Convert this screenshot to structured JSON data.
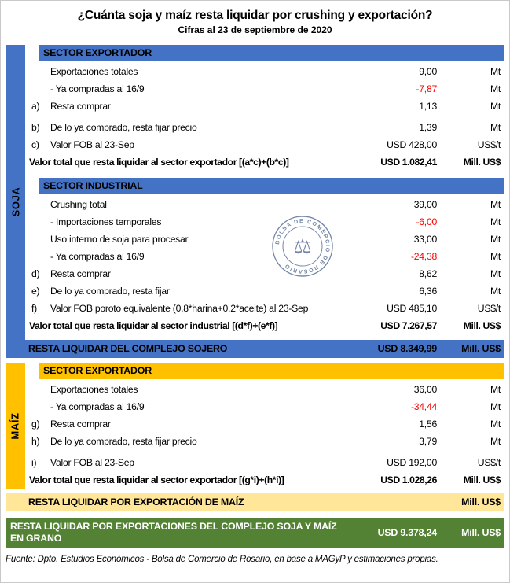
{
  "title": "¿Cuánta soja y maíz resta liquidar por crushing y exportación?",
  "subtitle": "Cifras al 23 de septiembre de 2020",
  "watermark_text": "BOLSA DE COMERCIO DE ROSARIO",
  "colors": {
    "soja_accent": "#4472C4",
    "maiz_accent": "#FFC000",
    "maiz_total_bg": "#FFE699",
    "grand_total_bg": "#548235",
    "negative": "#FF0000"
  },
  "soja": {
    "side_label": "SOJA",
    "sections": [
      {
        "header": "SECTOR EXPORTADOR",
        "rows": [
          {
            "letter": "",
            "label": "Exportaciones totales",
            "value": "9,00",
            "unit": "Mt"
          },
          {
            "letter": "",
            "label": "- Ya compradas al 16/9",
            "value": "-7,87",
            "unit": "Mt",
            "negative": true
          },
          {
            "letter": "a)",
            "label": "Resta comprar",
            "value": "1,13",
            "unit": "Mt"
          },
          {
            "letter": "b)",
            "label": "De lo ya comprado, resta fijar precio",
            "value": "1,39",
            "unit": "Mt",
            "gap": true
          },
          {
            "letter": "c)",
            "label": "Valor FOB al 23-Sep",
            "value": "USD 428,00",
            "unit": "US$/t"
          },
          {
            "label": "Valor total que resta liquidar al sector exportador [(a*c)+(b*c)]",
            "value": "USD 1.082,41",
            "unit": "Mill. US$",
            "bold": true
          }
        ]
      },
      {
        "header": "SECTOR INDUSTRIAL",
        "rows": [
          {
            "letter": "",
            "label": "Crushing total",
            "value": "39,00",
            "unit": "Mt"
          },
          {
            "letter": "",
            "label": "- Importaciones temporales",
            "value": "-6,00",
            "unit": "Mt",
            "negative": true
          },
          {
            "letter": "",
            "label": "Uso interno de soja para procesar",
            "value": "33,00",
            "unit": "Mt"
          },
          {
            "letter": "",
            "label": "- Ya compradas al 16/9",
            "value": "-24,38",
            "unit": "Mt",
            "negative": true
          },
          {
            "letter": "d)",
            "label": "Resta comprar",
            "value": "8,62",
            "unit": "Mt"
          },
          {
            "letter": "e)",
            "label": "De lo ya comprado, resta fijar",
            "value": "6,36",
            "unit": "Mt"
          },
          {
            "letter": "f)",
            "label": "Valor FOB poroto equivalente (0,8*harina+0,2*aceite) al 23-Sep",
            "value": "USD 485,10",
            "unit": "US$/t"
          },
          {
            "label": "Valor total que resta liquidar al sector industrial [(d*f)+(e*f)]",
            "value": "USD 7.267,57",
            "unit": "Mill. US$",
            "bold": true
          }
        ]
      }
    ],
    "total": {
      "label": "RESTA LIQUIDAR DEL COMPLEJO SOJERO",
      "value": "USD 8.349,99",
      "unit": "Mill. US$"
    }
  },
  "maiz": {
    "side_label": "MAÍZ",
    "sections": [
      {
        "header": "SECTOR EXPORTADOR",
        "rows": [
          {
            "letter": "",
            "label": "Exportaciones totales",
            "value": "36,00",
            "unit": "Mt"
          },
          {
            "letter": "",
            "label": "- Ya compradas al 16/9",
            "value": "-34,44",
            "unit": "Mt",
            "negative": true
          },
          {
            "letter": "g)",
            "label": "Resta comprar",
            "value": "1,56",
            "unit": "Mt"
          },
          {
            "letter": "h)",
            "label": "De lo ya comprado, resta fijar precio",
            "value": "3,79",
            "unit": "Mt"
          },
          {
            "letter": "i)",
            "label": "Valor FOB al 23-Sep",
            "value": "USD 192,00",
            "unit": "US$/t",
            "gap": true
          },
          {
            "label": "Valor total que resta liquidar al sector exportador [(g*i)+(h*i)]",
            "value": "USD 1.028,26",
            "unit": "Mill. US$",
            "bold": true
          }
        ]
      }
    ],
    "total": {
      "label": "RESTA LIQUIDAR POR EXPORTACIÓN DE MAÍZ",
      "value": "",
      "unit": "Mill. US$"
    }
  },
  "grand_total": {
    "label": "RESTA LIQUIDAR POR EXPORTACIONES DEL COMPLEJO SOJA Y MAÍZ EN GRANO",
    "value": "USD 9.378,24",
    "unit": "Mill. US$"
  },
  "source": "Fuente: Dpto. Estudios Económicos - Bolsa de Comercio de Rosario, en base a MAGyP y estimaciones propias."
}
